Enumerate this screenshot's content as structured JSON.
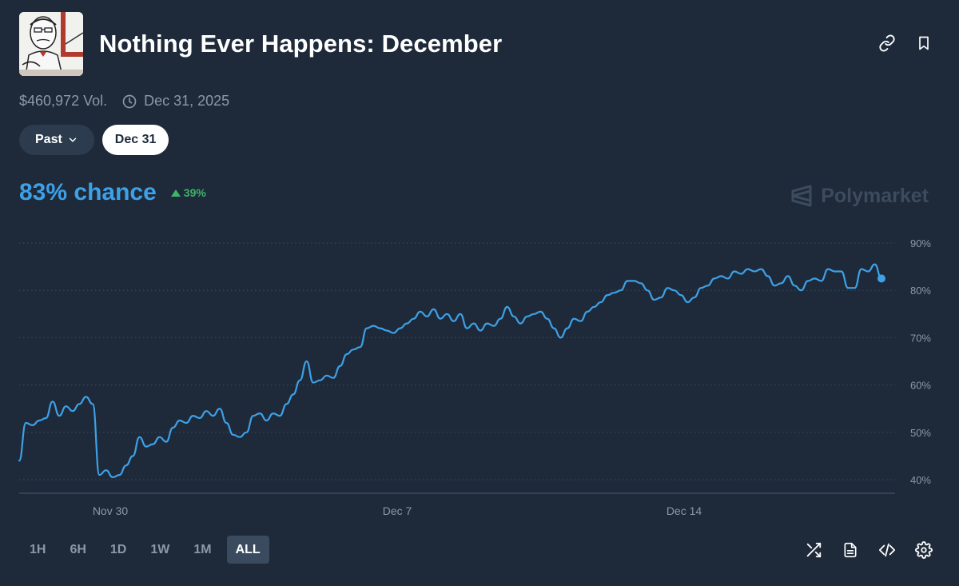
{
  "market": {
    "title": "Nothing Ever Happens: December",
    "thumbnail_icon": "meme-character-thumbnail-icon",
    "volume": "$460,972 Vol.",
    "end_date": "Dec 31, 2025"
  },
  "filters": {
    "past_label": "Past",
    "date_label": "Dec 31"
  },
  "summary": {
    "chance_text": "83% chance",
    "delta_text": "39%",
    "delta_direction": "up",
    "delta_color": "#3db468"
  },
  "brand": {
    "name": "Polymarket"
  },
  "colors": {
    "line": "#3ea0e6",
    "background": "#1e2a3a"
  },
  "time_ranges": [
    {
      "label": "1H",
      "active": false
    },
    {
      "label": "6H",
      "active": false
    },
    {
      "label": "1D",
      "active": false
    },
    {
      "label": "1W",
      "active": false
    },
    {
      "label": "1M",
      "active": false
    },
    {
      "label": "ALL",
      "active": true
    }
  ],
  "icons": {
    "top": [
      "link-icon",
      "bookmark-icon"
    ],
    "bottom": [
      "shuffle-icon",
      "document-icon",
      "code-embed-icon",
      "gear-icon"
    ]
  },
  "chart_data": {
    "type": "line",
    "title": "",
    "xlabel": "",
    "ylabel": "",
    "ylim": [
      40,
      90
    ],
    "xlim": [
      "2025-11-28",
      "2025-12-19"
    ],
    "x_ticks": [
      "Nov 30",
      "Dec 7",
      "Dec 14"
    ],
    "y_ticks": [
      "40%",
      "50%",
      "60%",
      "70%",
      "80%",
      "90%"
    ],
    "grid": true,
    "series": [
      {
        "values": [
          [
            "2025-11-28",
            44
          ],
          [
            "2025-11-28",
            52
          ],
          [
            "2025-11-28",
            51.5
          ],
          [
            "2025-11-28",
            52.5
          ],
          [
            "2025-11-28",
            53
          ],
          [
            "2025-11-28",
            56.5
          ],
          [
            "2025-11-28",
            53.5
          ],
          [
            "2025-11-28",
            55.5
          ],
          [
            "2025-11-28",
            54.5
          ],
          [
            "2025-11-28",
            56
          ],
          [
            "2025-11-29",
            57.5
          ],
          [
            "2025-11-29",
            56
          ],
          [
            "2025-11-29",
            41
          ],
          [
            "2025-11-29",
            42
          ],
          [
            "2025-11-29",
            40.5
          ],
          [
            "2025-11-29",
            41
          ],
          [
            "2025-11-29",
            43
          ],
          [
            "2025-11-30",
            45
          ],
          [
            "2025-11-30",
            49
          ],
          [
            "2025-11-30",
            47
          ],
          [
            "2025-11-30",
            47.5
          ],
          [
            "2025-11-30",
            49
          ],
          [
            "2025-11-30",
            48
          ],
          [
            "2025-12-01",
            51
          ],
          [
            "2025-12-01",
            52.5
          ],
          [
            "2025-12-01",
            52
          ],
          [
            "2025-12-01",
            53.5
          ],
          [
            "2025-12-01",
            53
          ],
          [
            "2025-12-01",
            54.5
          ],
          [
            "2025-12-01",
            53.5
          ],
          [
            "2025-12-02",
            55
          ],
          [
            "2025-12-02",
            52
          ],
          [
            "2025-12-02",
            49.5
          ],
          [
            "2025-12-02",
            49
          ],
          [
            "2025-12-02",
            50
          ],
          [
            "2025-12-03",
            53.5
          ],
          [
            "2025-12-03",
            54
          ],
          [
            "2025-12-03",
            52.5
          ],
          [
            "2025-12-03",
            54
          ],
          [
            "2025-12-03",
            53.5
          ],
          [
            "2025-12-03",
            56
          ],
          [
            "2025-12-04",
            58
          ],
          [
            "2025-12-04",
            61
          ],
          [
            "2025-12-04",
            65
          ],
          [
            "2025-12-04",
            60.5
          ],
          [
            "2025-12-04",
            61
          ],
          [
            "2025-12-04",
            62
          ],
          [
            "2025-12-04",
            61.5
          ],
          [
            "2025-12-05",
            64
          ],
          [
            "2025-12-05",
            66.5
          ],
          [
            "2025-12-05",
            67.5
          ],
          [
            "2025-12-05",
            68
          ],
          [
            "2025-12-05",
            72
          ],
          [
            "2025-12-05",
            72.5
          ],
          [
            "2025-12-05",
            72
          ],
          [
            "2025-12-06",
            71.5
          ],
          [
            "2025-12-06",
            71
          ],
          [
            "2025-12-06",
            72
          ],
          [
            "2025-12-06",
            73
          ],
          [
            "2025-12-06",
            74
          ],
          [
            "2025-12-06",
            75.5
          ],
          [
            "2025-12-06",
            74.5
          ],
          [
            "2025-12-07",
            76
          ],
          [
            "2025-12-07",
            74
          ],
          [
            "2025-12-07",
            75
          ],
          [
            "2025-12-07",
            73.5
          ],
          [
            "2025-12-07",
            75
          ],
          [
            "2025-12-08",
            72
          ],
          [
            "2025-12-08",
            73
          ],
          [
            "2025-12-08",
            71.5
          ],
          [
            "2025-12-08",
            73
          ],
          [
            "2025-12-08",
            72.5
          ],
          [
            "2025-12-08",
            74
          ],
          [
            "2025-12-09",
            76.5
          ],
          [
            "2025-12-09",
            74.5
          ],
          [
            "2025-12-09",
            73
          ],
          [
            "2025-12-09",
            74.5
          ],
          [
            "2025-12-09",
            75
          ],
          [
            "2025-12-09",
            75.5
          ],
          [
            "2025-12-09",
            74
          ],
          [
            "2025-12-10",
            72
          ],
          [
            "2025-12-10",
            70
          ],
          [
            "2025-12-10",
            72
          ],
          [
            "2025-12-10",
            74
          ],
          [
            "2025-12-10",
            73.5
          ],
          [
            "2025-12-10",
            75.5
          ],
          [
            "2025-12-11",
            76.5
          ],
          [
            "2025-12-11",
            77.5
          ],
          [
            "2025-12-11",
            79
          ],
          [
            "2025-12-11",
            79.5
          ],
          [
            "2025-12-11",
            80
          ],
          [
            "2025-12-11",
            82
          ],
          [
            "2025-12-12",
            82
          ],
          [
            "2025-12-12",
            81.5
          ],
          [
            "2025-12-12",
            80
          ],
          [
            "2025-12-12",
            78
          ],
          [
            "2025-12-12",
            78.5
          ],
          [
            "2025-12-12",
            80.5
          ],
          [
            "2025-12-12",
            80
          ],
          [
            "2025-12-13",
            79
          ],
          [
            "2025-12-13",
            77.5
          ],
          [
            "2025-12-13",
            78.5
          ],
          [
            "2025-12-13",
            80.5
          ],
          [
            "2025-12-13",
            81
          ],
          [
            "2025-12-13",
            82.5
          ],
          [
            "2025-12-14",
            83
          ],
          [
            "2025-12-14",
            82.5
          ],
          [
            "2025-12-14",
            84
          ],
          [
            "2025-12-14",
            83.5
          ],
          [
            "2025-12-14",
            84.5
          ],
          [
            "2025-12-15",
            84
          ],
          [
            "2025-12-15",
            84.5
          ],
          [
            "2025-12-15",
            83
          ],
          [
            "2025-12-15",
            81
          ],
          [
            "2025-12-15",
            81.5
          ],
          [
            "2025-12-15",
            83
          ],
          [
            "2025-12-15",
            81
          ],
          [
            "2025-12-16",
            80
          ],
          [
            "2025-12-16",
            82
          ],
          [
            "2025-12-16",
            82.5
          ],
          [
            "2025-12-16",
            82
          ],
          [
            "2025-12-16",
            84.5
          ],
          [
            "2025-12-16",
            84
          ],
          [
            "2025-12-17",
            84
          ],
          [
            "2025-12-17",
            80.5
          ],
          [
            "2025-12-17",
            80.5
          ],
          [
            "2025-12-17",
            84.5
          ],
          [
            "2025-12-17",
            84
          ],
          [
            "2025-12-18",
            85.5
          ],
          [
            "2025-12-18",
            82.5
          ]
        ]
      }
    ]
  }
}
